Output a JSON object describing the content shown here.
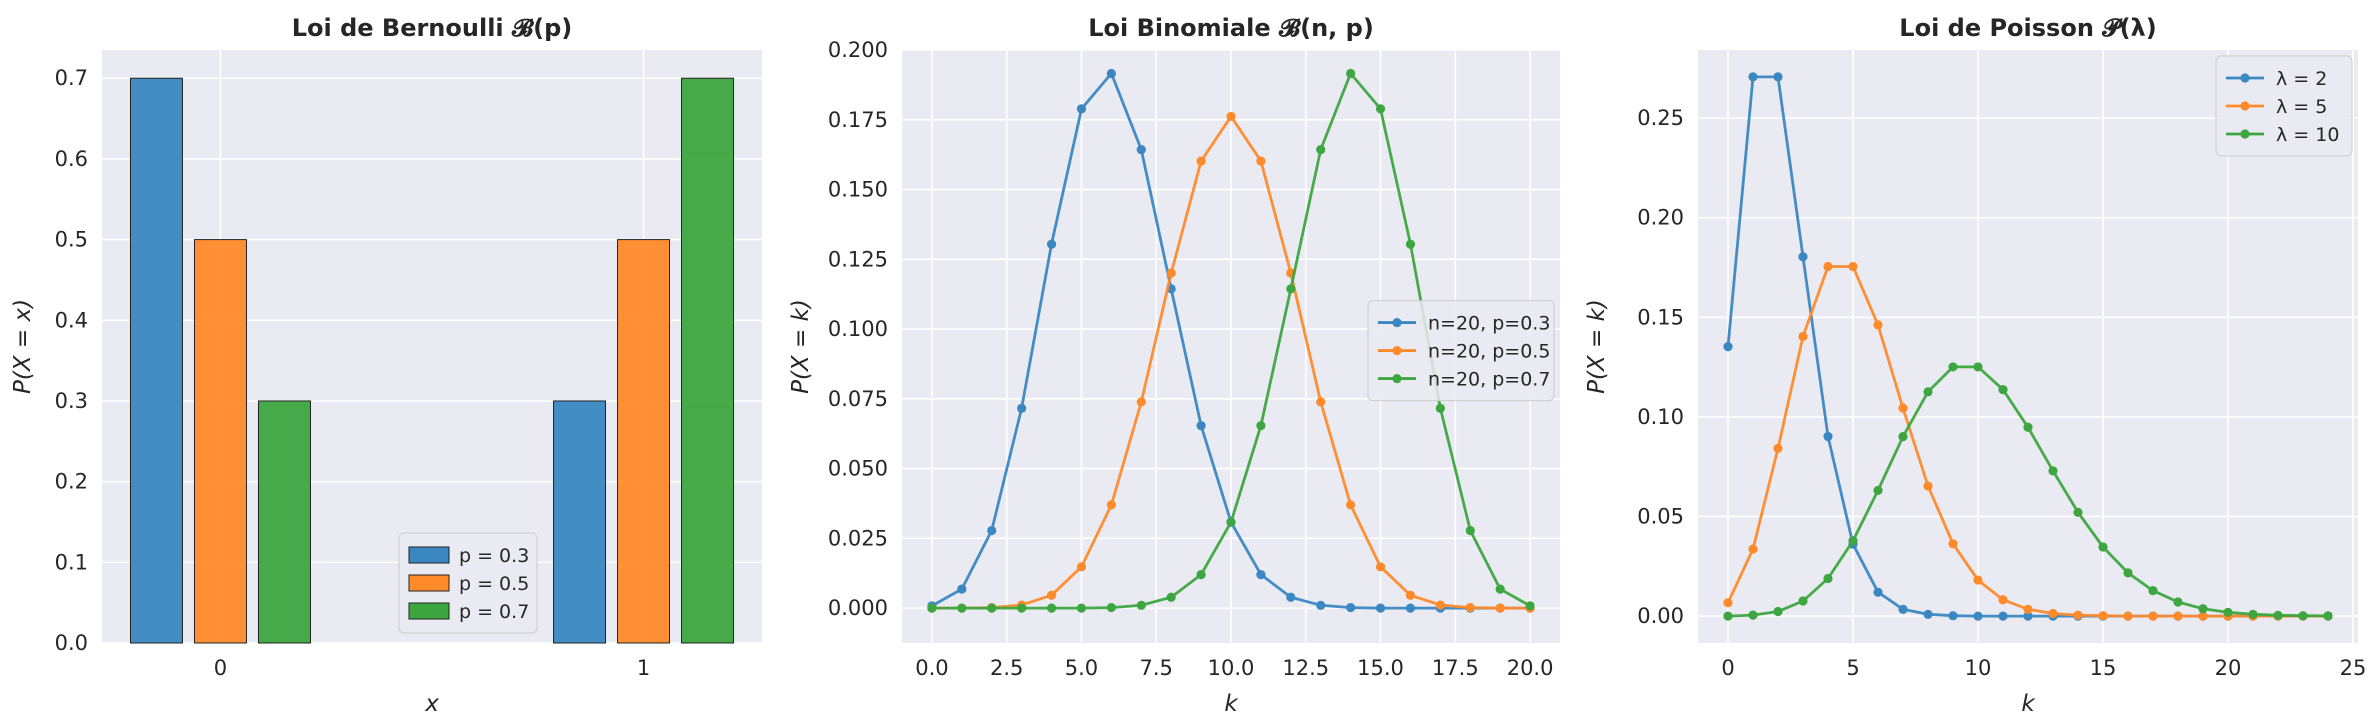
{
  "colors": {
    "background": "#ffffff",
    "plot_bg": "#eaeaf2",
    "grid": "#ffffff",
    "text": "#262626",
    "series": [
      "#3a87c1",
      "#ff8a2a",
      "#3da640"
    ]
  },
  "chart_data": [
    {
      "type": "bar",
      "title": "Loi de Bernoulli 𝓑(p)",
      "xlabel": "x",
      "ylabel": "P(X = x)",
      "categories": [
        "0",
        "1"
      ],
      "ylim": [
        0,
        0.735
      ],
      "yticks": [
        0.0,
        0.1,
        0.2,
        0.3,
        0.4,
        0.5,
        0.6,
        0.7
      ],
      "ytick_labels": [
        "0.0",
        "0.1",
        "0.2",
        "0.3",
        "0.4",
        "0.5",
        "0.6",
        "0.7"
      ],
      "legend_position": "lower-center",
      "series": [
        {
          "name": "p = 0.3",
          "values": [
            0.7,
            0.3
          ]
        },
        {
          "name": "p = 0.5",
          "values": [
            0.5,
            0.5
          ]
        },
        {
          "name": "p = 0.7",
          "values": [
            0.3,
            0.7
          ]
        }
      ]
    },
    {
      "type": "line",
      "title": "Loi Binomiale 𝓑(n, p)",
      "xlabel": "k",
      "ylabel": "P(X = k)",
      "xlim": [
        -1,
        21
      ],
      "ylim": [
        -0.0125,
        0.2
      ],
      "xticks": [
        0,
        2.5,
        5,
        7.5,
        10,
        12.5,
        15,
        17.5,
        20
      ],
      "xtick_labels": [
        "0.0",
        "2.5",
        "5.0",
        "7.5",
        "10.0",
        "12.5",
        "15.0",
        "17.5",
        "20.0"
      ],
      "yticks": [
        0,
        0.025,
        0.05,
        0.075,
        0.1,
        0.125,
        0.15,
        0.175,
        0.2
      ],
      "ytick_labels": [
        "0.000",
        "0.025",
        "0.050",
        "0.075",
        "0.100",
        "0.125",
        "0.150",
        "0.175",
        "0.200"
      ],
      "legend_position": "center-right",
      "x": [
        0,
        1,
        2,
        3,
        4,
        5,
        6,
        7,
        8,
        9,
        10,
        11,
        12,
        13,
        14,
        15,
        16,
        17,
        18,
        19,
        20
      ],
      "series": [
        {
          "name": "n=20, p=0.3",
          "values": [
            0.0008,
            0.0068,
            0.0278,
            0.0716,
            0.1304,
            0.1789,
            0.1916,
            0.1643,
            0.1144,
            0.0654,
            0.0308,
            0.012,
            0.0039,
            0.001,
            0.0002,
            0,
            0,
            0,
            0,
            0,
            0
          ]
        },
        {
          "name": "n=20, p=0.5",
          "values": [
            0,
            0,
            0.0002,
            0.0011,
            0.0046,
            0.0148,
            0.037,
            0.0739,
            0.1201,
            0.1602,
            0.1762,
            0.1602,
            0.1201,
            0.0739,
            0.037,
            0.0148,
            0.0046,
            0.0011,
            0.0002,
            0,
            0
          ]
        },
        {
          "name": "n=20, p=0.7",
          "values": [
            0,
            0,
            0,
            0,
            0,
            0,
            0.0002,
            0.001,
            0.0039,
            0.012,
            0.0308,
            0.0654,
            0.1144,
            0.1643,
            0.1916,
            0.1789,
            0.1304,
            0.0716,
            0.0278,
            0.0068,
            0.0008
          ]
        }
      ]
    },
    {
      "type": "line",
      "title": "Loi de Poisson 𝓟(λ)",
      "xlabel": "k",
      "ylabel": "P(X = k)",
      "xlim": [
        -1.2,
        25.2
      ],
      "ylim": [
        -0.0135,
        0.2842
      ],
      "xticks": [
        0,
        5,
        10,
        15,
        20,
        25
      ],
      "xtick_labels": [
        "0",
        "5",
        "10",
        "15",
        "20",
        "25"
      ],
      "yticks": [
        0,
        0.05,
        0.1,
        0.15,
        0.2,
        0.25
      ],
      "ytick_labels": [
        "0.00",
        "0.05",
        "0.10",
        "0.15",
        "0.20",
        "0.25"
      ],
      "legend_position": "upper-right",
      "x": [
        0,
        1,
        2,
        3,
        4,
        5,
        6,
        7,
        8,
        9,
        10,
        11,
        12,
        13,
        14,
        15,
        16,
        17,
        18,
        19,
        20,
        21,
        22,
        23,
        24
      ],
      "series": [
        {
          "name": "λ = 2",
          "values": [
            0.1353,
            0.2707,
            0.2707,
            0.1804,
            0.0902,
            0.0361,
            0.012,
            0.0034,
            0.0009,
            0.0002,
            0,
            0,
            0,
            0,
            0,
            0,
            0,
            0,
            0,
            0,
            0,
            0,
            0,
            0,
            0
          ]
        },
        {
          "name": "λ = 5",
          "values": [
            0.0067,
            0.0337,
            0.0842,
            0.1404,
            0.1755,
            0.1755,
            0.1462,
            0.1044,
            0.0653,
            0.0363,
            0.0181,
            0.0082,
            0.0034,
            0.0013,
            0.0005,
            0.0002,
            0,
            0,
            0,
            0,
            0,
            0,
            0,
            0,
            0
          ]
        },
        {
          "name": "λ = 10",
          "values": [
            0,
            0.0005,
            0.0023,
            0.0076,
            0.0189,
            0.0378,
            0.0631,
            0.0901,
            0.1126,
            0.1251,
            0.1251,
            0.1137,
            0.0948,
            0.0729,
            0.0521,
            0.0347,
            0.0217,
            0.0128,
            0.0071,
            0.0037,
            0.0019,
            0.0009,
            0.0004,
            0.0002,
            0.0001
          ]
        }
      ]
    }
  ]
}
